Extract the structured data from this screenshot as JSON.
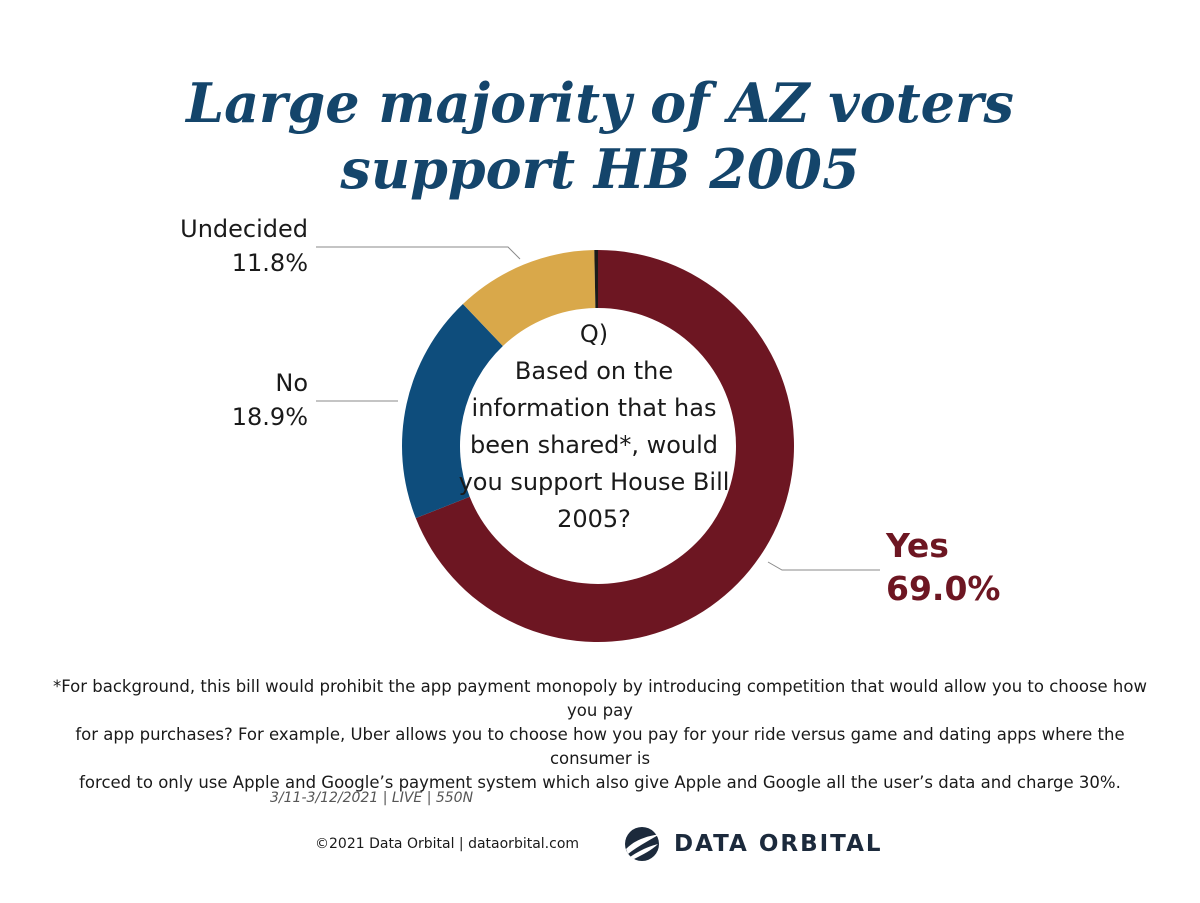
{
  "title": {
    "line1": "Large majority of AZ voters",
    "line2": "support HB 2005"
  },
  "question": {
    "prefix": "Q)",
    "text": "Based on the information that has been shared*, would you support House Bill 2005?"
  },
  "chart_data": {
    "type": "pie",
    "style": "donut",
    "title": "Large majority of AZ voters support HB 2005",
    "slices": [
      {
        "name": "Yes",
        "value": 69.0,
        "label": "69.0%",
        "color": "#6d1622"
      },
      {
        "name": "No",
        "value": 18.9,
        "label": "18.9%",
        "color": "#0e4d7c"
      },
      {
        "name": "Undecided",
        "value": 11.8,
        "label": "11.8%",
        "color": "#d9a84a"
      }
    ],
    "other_value": 0.3,
    "start": "12 o'clock",
    "direction": "clockwise"
  },
  "footnote": {
    "line1": "*For background, this bill would prohibit the app payment monopoly by introducing competition that would allow you to choose how you pay",
    "line2": "for app purchases? For example, Uber allows you to choose how you pay for your ride versus game and dating apps where the consumer is",
    "line3": "forced to only use Apple and Google’s payment system which also give Apple and Google all the user’s data and charge 30%."
  },
  "meta": "3/11-3/12/2021 | LIVE | 550N",
  "copyright": "©2021 Data Orbital | dataorbital.com",
  "brand": {
    "name": "DATA ORBITAL",
    "logo_icon": "orbit-globe-icon"
  },
  "colors": {
    "title": "#14456b",
    "yes": "#6d1622",
    "no": "#0e4d7c",
    "undecided": "#d9a84a"
  }
}
